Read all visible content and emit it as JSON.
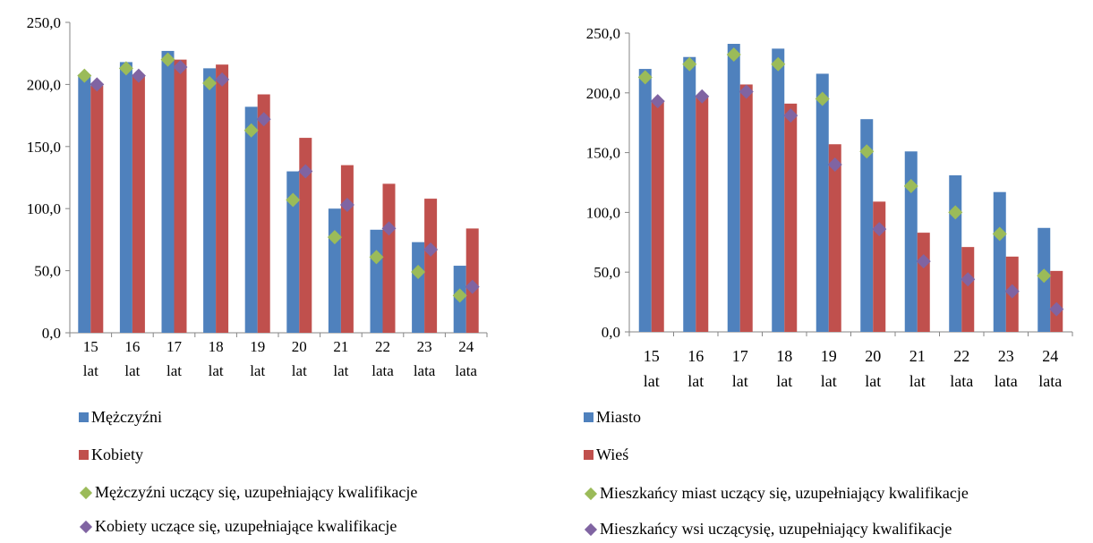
{
  "chart_data": [
    {
      "type": "bar",
      "title": "",
      "categories": [
        "15 lat",
        "16 lat",
        "17 lat",
        "18 lat",
        "19 lat",
        "20 lat",
        "21 lat",
        "22 lata",
        "23 lata",
        "24 lata"
      ],
      "category_lines": [
        [
          "15",
          "lat"
        ],
        [
          "16",
          "lat"
        ],
        [
          "17",
          "lat"
        ],
        [
          "18",
          "lat"
        ],
        [
          "19",
          "lat"
        ],
        [
          "20",
          "lat"
        ],
        [
          "21",
          "lat"
        ],
        [
          "22",
          "lata"
        ],
        [
          "23",
          "lata"
        ],
        [
          "24",
          "lata"
        ]
      ],
      "ylim": [
        0,
        250
      ],
      "yticks": [
        "0,0",
        "50,0",
        "100,0",
        "150,0",
        "200,0",
        "250,0"
      ],
      "series": [
        {
          "name": "Mężczyźni",
          "kind": "bar",
          "color": "#4F81BD",
          "values": [
            208,
            218,
            227,
            213,
            182,
            130,
            100,
            83,
            73,
            54
          ]
        },
        {
          "name": "Kobiety",
          "kind": "bar",
          "color": "#C0504D",
          "values": [
            199,
            207,
            220,
            216,
            192,
            157,
            135,
            120,
            108,
            84
          ]
        },
        {
          "name": "Mężczyźni uczący się, uzupełniający kwalifikacje",
          "kind": "marker",
          "color": "#9BBB59",
          "values": [
            207,
            213,
            220,
            201,
            163,
            107,
            77,
            61,
            49,
            30
          ]
        },
        {
          "name": "Kobiety uczące się, uzupełniające kwalifikacje",
          "kind": "marker",
          "color": "#8064A2",
          "values": [
            200,
            207,
            214,
            204,
            172,
            130,
            103,
            84,
            67,
            37
          ]
        }
      ],
      "legend_position": "bottom"
    },
    {
      "type": "bar",
      "title": "",
      "categories": [
        "15 lat",
        "16 lat",
        "17 lat",
        "18 lat",
        "19 lat",
        "20 lat",
        "21 lat",
        "22 lata",
        "23 lata",
        "24 lata"
      ],
      "category_lines": [
        [
          "15",
          "lat"
        ],
        [
          "16",
          "lat"
        ],
        [
          "17",
          "lat"
        ],
        [
          "18",
          "lat"
        ],
        [
          "19",
          "lat"
        ],
        [
          "20",
          "lat"
        ],
        [
          "21",
          "lat"
        ],
        [
          "22",
          "lata"
        ],
        [
          "23",
          "lata"
        ],
        [
          "24",
          "lata"
        ]
      ],
      "ylim": [
        0,
        250
      ],
      "yticks": [
        "0,0",
        "50,0",
        "100,0",
        "150,0",
        "200,0",
        "250,0"
      ],
      "series": [
        {
          "name": "Miasto",
          "kind": "bar",
          "color": "#4F81BD",
          "values": [
            220,
            230,
            241,
            237,
            216,
            178,
            151,
            131,
            117,
            87
          ]
        },
        {
          "name": "Wieś",
          "kind": "bar",
          "color": "#C0504D",
          "values": [
            193,
            197,
            207,
            191,
            157,
            109,
            83,
            71,
            63,
            51
          ]
        },
        {
          "name": "Mieszkańcy miast uczący się, uzupełniający kwalifikacje",
          "kind": "marker",
          "color": "#9BBB59",
          "values": [
            213,
            224,
            232,
            224,
            195,
            151,
            122,
            100,
            82,
            47
          ]
        },
        {
          "name": "Mieszkańcy wsi uczącysię, uzupełniający kwalifikacje",
          "kind": "marker",
          "color": "#8064A2",
          "values": [
            193,
            197,
            201,
            181,
            140,
            86,
            59,
            44,
            34,
            19
          ]
        }
      ],
      "legend_position": "bottom"
    }
  ]
}
